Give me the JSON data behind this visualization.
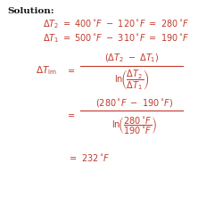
{
  "background_color": "#ffffff",
  "text_color": "#c0392b",
  "solution_color": "#1a1a1a",
  "figsize": [
    2.22,
    2.39
  ],
  "dpi": 100,
  "fs_solution": 7.5,
  "fs_main": 7.0
}
